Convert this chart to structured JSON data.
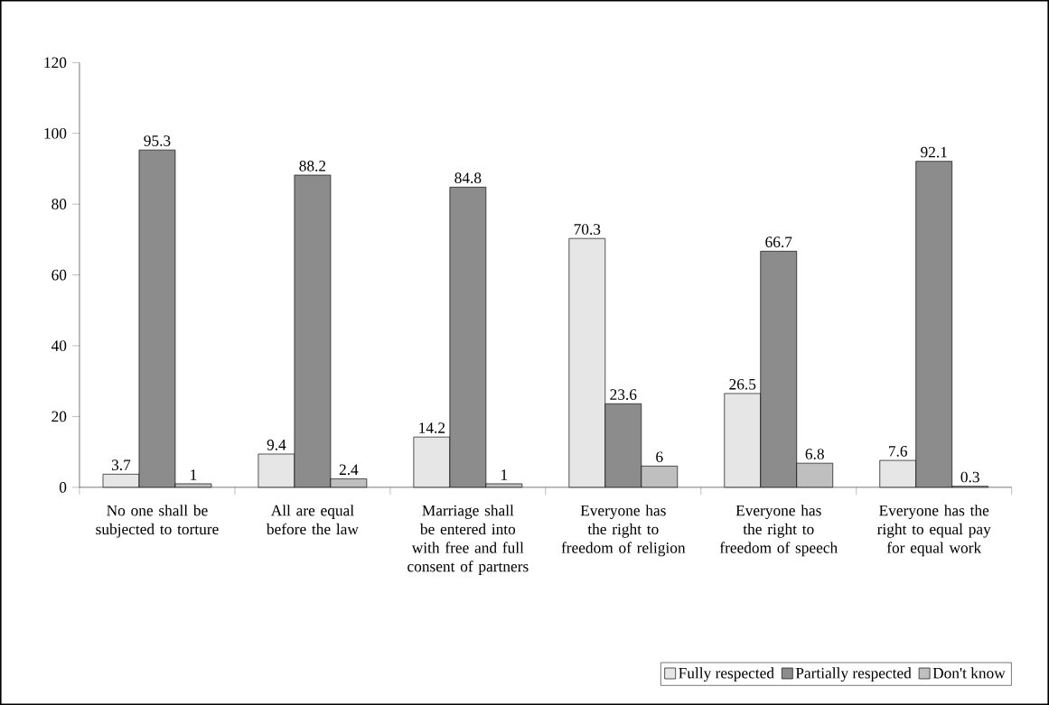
{
  "chart_data": {
    "type": "bar",
    "categories": [
      "No one shall be subjected to torture",
      "All are equal before the law",
      "Marriage shall be entered into with free and full consent of partners",
      "Everyone has the right to freedom of religion",
      "Everyone has the right to freedom of speech",
      "Everyone has the right to equal pay for equal work"
    ],
    "series": [
      {
        "name": "Fully respected",
        "color": "#e6e6e6",
        "values": [
          3.7,
          9.4,
          14.2,
          70.3,
          26.5,
          7.6
        ]
      },
      {
        "name": "Partially respected",
        "color": "#8c8c8c",
        "values": [
          95.3,
          88.2,
          84.8,
          23.6,
          66.7,
          92.1
        ]
      },
      {
        "name": "Don't know",
        "color": "#bfbfbf",
        "values": [
          1,
          2.4,
          1,
          6,
          6.8,
          0.3
        ]
      }
    ],
    "ylim": [
      0,
      120
    ],
    "yticks": [
      0,
      20,
      40,
      60,
      80,
      100,
      120
    ],
    "data_labels": true,
    "legend": "bottom right"
  }
}
